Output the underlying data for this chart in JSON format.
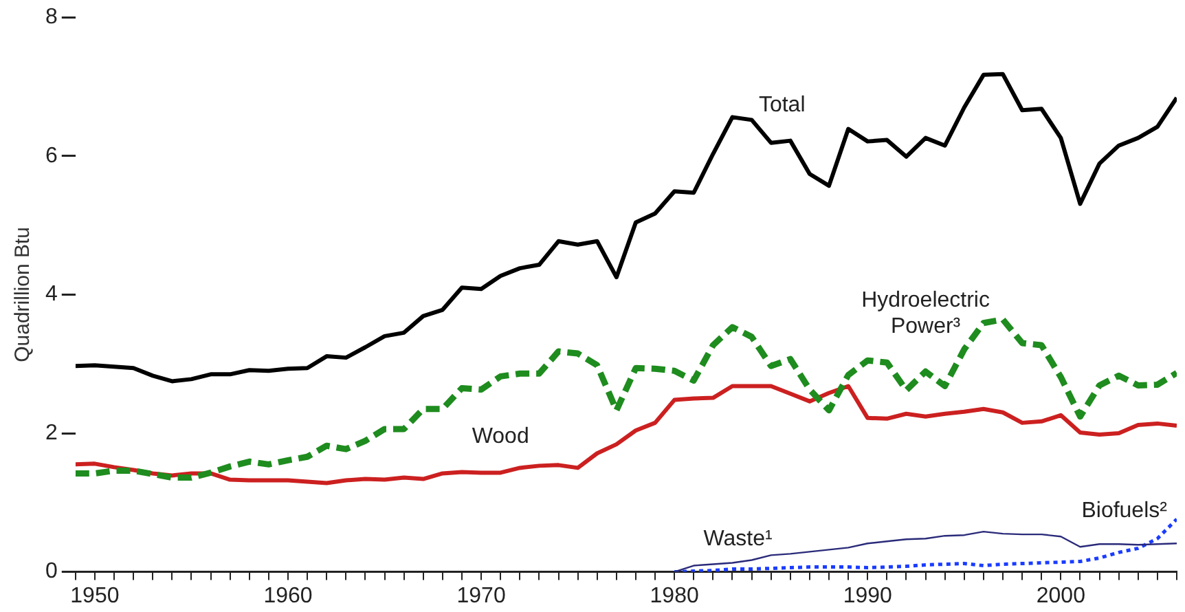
{
  "chart_data": {
    "type": "line",
    "ylabel": "Quadrillion Btu",
    "xlim": [
      1949,
      2006
    ],
    "ylim": [
      0,
      8
    ],
    "yticks": [
      0,
      2,
      4,
      6,
      8
    ],
    "xticks": [
      {
        "value": 1949,
        "label": null
      },
      1950,
      {
        "value": 1951,
        "label": null
      },
      {
        "value": 1952,
        "label": null
      },
      {
        "value": 1953,
        "label": null
      },
      {
        "value": 1954,
        "label": null
      },
      {
        "value": 1955,
        "label": null
      },
      {
        "value": 1956,
        "label": null
      },
      {
        "value": 1957,
        "label": null
      },
      {
        "value": 1958,
        "label": null
      },
      {
        "value": 1959,
        "label": null
      },
      1960,
      {
        "value": 1961,
        "label": null
      },
      {
        "value": 1962,
        "label": null
      },
      {
        "value": 1963,
        "label": null
      },
      {
        "value": 1964,
        "label": null
      },
      {
        "value": 1965,
        "label": null
      },
      {
        "value": 1966,
        "label": null
      },
      {
        "value": 1967,
        "label": null
      },
      {
        "value": 1968,
        "label": null
      },
      {
        "value": 1969,
        "label": null
      },
      1970,
      {
        "value": 1971,
        "label": null
      },
      {
        "value": 1972,
        "label": null
      },
      {
        "value": 1973,
        "label": null
      },
      {
        "value": 1974,
        "label": null
      },
      {
        "value": 1975,
        "label": null
      },
      {
        "value": 1976,
        "label": null
      },
      {
        "value": 1977,
        "label": null
      },
      {
        "value": 1978,
        "label": null
      },
      {
        "value": 1979,
        "label": null
      },
      1980,
      {
        "value": 1981,
        "label": null
      },
      {
        "value": 1982,
        "label": null
      },
      {
        "value": 1983,
        "label": null
      },
      {
        "value": 1984,
        "label": null
      },
      {
        "value": 1985,
        "label": null
      },
      {
        "value": 1986,
        "label": null
      },
      {
        "value": 1987,
        "label": null
      },
      {
        "value": 1988,
        "label": null
      },
      {
        "value": 1989,
        "label": null
      },
      1990,
      {
        "value": 1991,
        "label": null
      },
      {
        "value": 1992,
        "label": null
      },
      {
        "value": 1993,
        "label": null
      },
      {
        "value": 1994,
        "label": null
      },
      {
        "value": 1995,
        "label": null
      },
      {
        "value": 1996,
        "label": null
      },
      {
        "value": 1997,
        "label": null
      },
      {
        "value": 1998,
        "label": null
      },
      {
        "value": 1999,
        "label": null
      },
      2000,
      {
        "value": 2001,
        "label": null
      },
      {
        "value": 2002,
        "label": null
      },
      {
        "value": 2003,
        "label": null
      },
      {
        "value": 2004,
        "label": null
      },
      {
        "value": 2005,
        "label": null
      },
      {
        "value": 2006,
        "label": null
      }
    ],
    "x": [
      1949,
      1950,
      1951,
      1952,
      1953,
      1954,
      1955,
      1956,
      1957,
      1958,
      1959,
      1960,
      1961,
      1962,
      1963,
      1964,
      1965,
      1966,
      1967,
      1968,
      1969,
      1970,
      1971,
      1972,
      1973,
      1974,
      1975,
      1976,
      1977,
      1978,
      1979,
      1980,
      1981,
      1982,
      1983,
      1984,
      1985,
      1986,
      1987,
      1988,
      1989,
      1990,
      1991,
      1992,
      1993,
      1994,
      1995,
      1996,
      1997,
      1998,
      1999,
      2000,
      2001,
      2002,
      2003,
      2004,
      2005,
      2006
    ],
    "grid": false,
    "legend": false,
    "marker": "none",
    "series": [
      {
        "name": "Total",
        "color": "#000000",
        "line_style": "solid",
        "values": [
          2.97,
          2.98,
          2.96,
          2.94,
          2.83,
          2.75,
          2.78,
          2.85,
          2.85,
          2.91,
          2.9,
          2.93,
          2.94,
          3.11,
          3.09,
          3.24,
          3.4,
          3.45,
          3.69,
          3.78,
          4.1,
          4.08,
          4.27,
          4.38,
          4.43,
          4.77,
          4.72,
          4.77,
          4.25,
          5.04,
          5.17,
          5.49,
          5.47,
          6.03,
          6.56,
          6.52,
          6.19,
          6.22,
          5.74,
          5.57,
          6.39,
          6.21,
          6.23,
          5.99,
          6.26,
          6.15,
          6.7,
          7.17,
          7.18,
          6.66,
          6.68,
          6.26,
          5.31,
          5.89,
          6.15,
          6.26,
          6.42,
          6.84
        ]
      },
      {
        "name": "Hydroelectric Power³",
        "color": "#1e8c1e",
        "line_style": "dashed",
        "values": [
          1.42,
          1.42,
          1.46,
          1.46,
          1.41,
          1.36,
          1.36,
          1.43,
          1.52,
          1.59,
          1.55,
          1.61,
          1.66,
          1.82,
          1.77,
          1.89,
          2.06,
          2.06,
          2.35,
          2.35,
          2.65,
          2.63,
          2.82,
          2.86,
          2.86,
          3.18,
          3.15,
          2.98,
          2.33,
          2.94,
          2.93,
          2.9,
          2.76,
          3.27,
          3.53,
          3.39,
          2.97,
          3.07,
          2.63,
          2.33,
          2.84,
          3.05,
          3.02,
          2.62,
          2.89,
          2.68,
          3.21,
          3.59,
          3.64,
          3.3,
          3.27,
          2.81,
          2.24,
          2.69,
          2.83,
          2.69,
          2.7,
          2.87
        ]
      },
      {
        "name": "Wood",
        "color": "#cc2020",
        "line_style": "solid",
        "values": [
          1.55,
          1.56,
          1.51,
          1.47,
          1.42,
          1.39,
          1.42,
          1.42,
          1.33,
          1.32,
          1.32,
          1.32,
          1.3,
          1.28,
          1.32,
          1.34,
          1.33,
          1.36,
          1.34,
          1.42,
          1.44,
          1.43,
          1.43,
          1.5,
          1.53,
          1.54,
          1.5,
          1.71,
          1.84,
          2.04,
          2.15,
          2.48,
          2.5,
          2.51,
          2.68,
          2.68,
          2.68,
          2.57,
          2.46,
          2.58,
          2.68,
          2.22,
          2.21,
          2.28,
          2.24,
          2.28,
          2.31,
          2.35,
          2.3,
          2.15,
          2.17,
          2.26,
          2.01,
          1.98,
          2.0,
          2.12,
          2.14,
          2.11
        ]
      },
      {
        "name": "Waste¹",
        "color": "#2a2a7a",
        "line_style": "solid",
        "values": [
          null,
          null,
          null,
          null,
          null,
          null,
          null,
          null,
          null,
          null,
          null,
          null,
          null,
          null,
          null,
          null,
          null,
          null,
          null,
          null,
          null,
          null,
          null,
          null,
          null,
          null,
          null,
          null,
          null,
          null,
          null,
          0,
          0.09,
          0.11,
          0.13,
          0.17,
          0.24,
          0.26,
          0.29,
          0.32,
          0.35,
          0.41,
          0.44,
          0.47,
          0.48,
          0.52,
          0.53,
          0.58,
          0.55,
          0.54,
          0.54,
          0.51,
          0.36,
          0.4,
          0.4,
          0.39,
          0.4,
          0.41
        ]
      },
      {
        "name": "Biofuels²",
        "color": "#1a3cff",
        "line_style": "dotted",
        "values": [
          null,
          null,
          null,
          null,
          null,
          null,
          null,
          null,
          null,
          null,
          null,
          null,
          null,
          null,
          null,
          null,
          null,
          null,
          null,
          null,
          null,
          null,
          null,
          null,
          null,
          null,
          null,
          null,
          null,
          null,
          null,
          0,
          0.01,
          0.02,
          0.04,
          0.04,
          0.05,
          0.06,
          0.07,
          0.07,
          0.07,
          0.06,
          0.07,
          0.08,
          0.1,
          0.11,
          0.12,
          0.09,
          0.11,
          0.12,
          0.13,
          0.14,
          0.15,
          0.2,
          0.28,
          0.34,
          0.48,
          0.76
        ]
      }
    ]
  }
}
